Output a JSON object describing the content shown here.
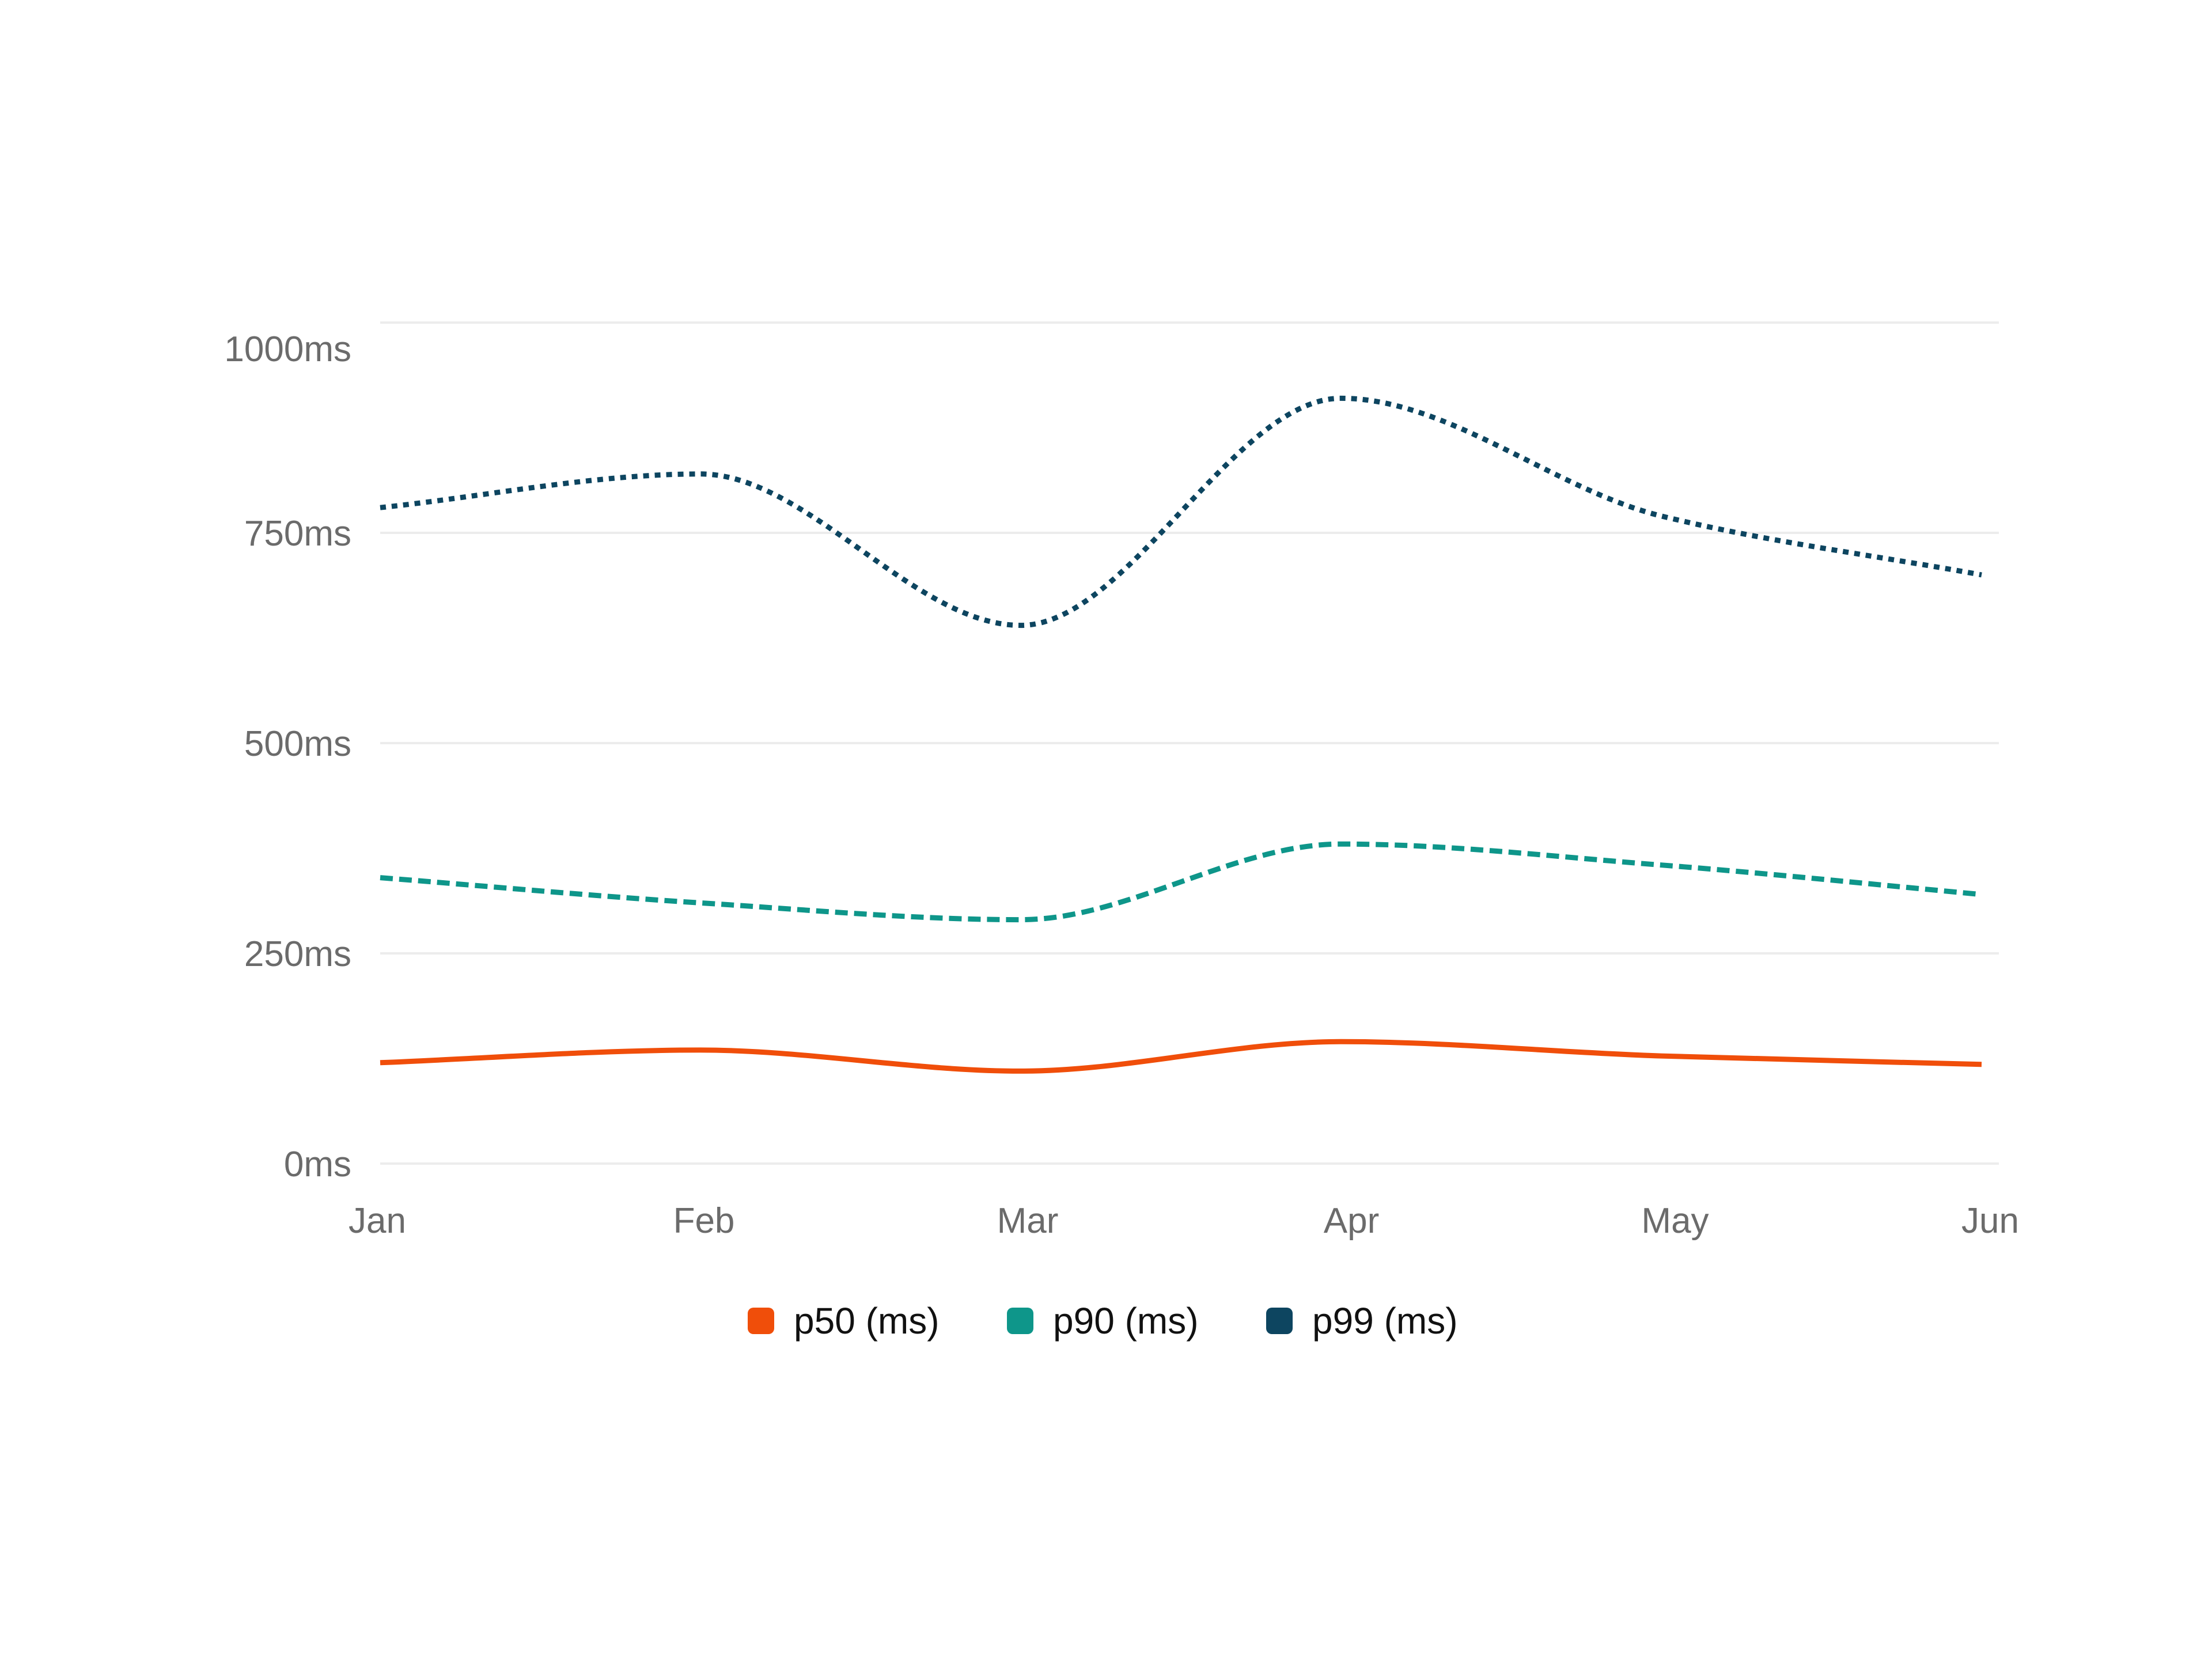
{
  "chart_data": {
    "type": "line",
    "title": "",
    "xlabel": "",
    "ylabel": "",
    "categories": [
      "Jan",
      "Feb",
      "Mar",
      "Apr",
      "May",
      "Jun"
    ],
    "ylim": [
      0,
      1000
    ],
    "yticks": [
      0,
      250,
      500,
      750,
      1000
    ],
    "ytick_labels": [
      "0ms",
      "250ms",
      "500ms",
      "750ms",
      "1000ms"
    ],
    "grid": true,
    "legend_position": "bottom",
    "curve": "smooth",
    "series": [
      {
        "name": "p50 (ms)",
        "values": [
          120,
          135,
          110,
          145,
          128,
          118
        ],
        "color": "#f04e0a",
        "style": "solid"
      },
      {
        "name": "p90 (ms)",
        "values": [
          340,
          310,
          290,
          380,
          355,
          320
        ],
        "color": "#0e968a",
        "style": "dashed"
      },
      {
        "name": "p99 (ms)",
        "values": [
          780,
          820,
          640,
          910,
          770,
          700
        ],
        "color": "#0d4560",
        "style": "dotted"
      }
    ]
  }
}
